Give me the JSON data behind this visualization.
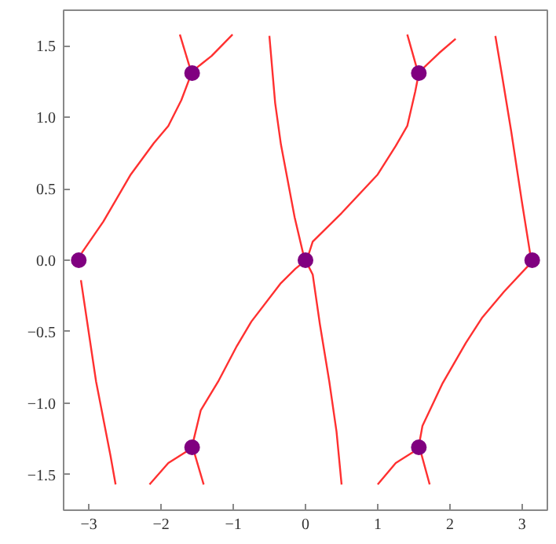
{
  "chart_data": {
    "type": "line",
    "xlim": [
      -3.35,
      3.35
    ],
    "ylim": [
      -1.75,
      1.75
    ],
    "xticks": [
      {
        "value": -3,
        "label": "−3"
      },
      {
        "value": -2,
        "label": "−2"
      },
      {
        "value": -1,
        "label": "−1"
      },
      0,
      1,
      2,
      3
    ],
    "yticks": [
      {
        "value": -1.5,
        "label": "−1.5"
      },
      {
        "value": -1,
        "label": "−1.0"
      },
      {
        "value": -0.5,
        "label": "−0.5"
      },
      {
        "value": 0,
        "label": "0.0"
      },
      {
        "value": 0.5,
        "label": "0.5"
      },
      {
        "value": 1,
        "label": "1.0"
      },
      {
        "value": 1.5,
        "label": "1.5"
      }
    ],
    "series": [
      {
        "color": "#ff3030",
        "x": [
          -3.1,
          -2.8,
          -2.42,
          -2.1,
          -1.9,
          -1.72,
          -1.6
        ],
        "values": [
          0.05,
          0.27,
          0.6,
          0.82,
          0.94,
          1.12,
          1.28
        ]
      },
      {
        "color": "#ff3030",
        "x": [
          -1.59,
          -1.74
        ],
        "values": [
          1.33,
          1.58
        ]
      },
      {
        "color": "#ff3030",
        "x": [
          -1.55,
          -1.3,
          -1.01
        ],
        "values": [
          1.33,
          1.43,
          1.58
        ]
      },
      {
        "color": "#ff3030",
        "x": [
          -0.02,
          -0.15,
          -0.34,
          -0.42,
          -0.5
        ],
        "values": [
          0.02,
          0.3,
          0.81,
          1.1,
          1.57
        ]
      },
      {
        "color": "#ff3030",
        "x": [
          0.03,
          0.1,
          0.5,
          1.0,
          1.25,
          1.41,
          1.52,
          1.57
        ],
        "values": [
          0.02,
          0.13,
          0.33,
          0.6,
          0.8,
          0.94,
          1.18,
          1.31
        ]
      },
      {
        "color": "#ff3030",
        "x": [
          1.6,
          1.85,
          2.08
        ],
        "values": [
          1.33,
          1.45,
          1.55
        ]
      },
      {
        "color": "#ff3030",
        "x": [
          1.55,
          1.41
        ],
        "values": [
          1.33,
          1.58
        ]
      },
      {
        "color": "#ff3030",
        "x": [
          3.12,
          3.0,
          2.85,
          2.72,
          2.63
        ],
        "values": [
          0.02,
          0.4,
          0.9,
          1.3,
          1.57
        ]
      },
      {
        "color": "#ff3030",
        "x": [
          -3.11,
          -2.9,
          -2.7,
          -2.63
        ],
        "values": [
          -0.14,
          -0.85,
          -1.37,
          -1.57
        ]
      },
      {
        "color": "#ff3030",
        "x": [
          -1.56,
          -1.45,
          -1.21,
          -0.95,
          -0.75,
          -0.34,
          -0.14,
          -0.02
        ],
        "values": [
          -1.28,
          -1.05,
          -0.85,
          -0.6,
          -0.43,
          -0.16,
          -0.06,
          -0.01
        ]
      },
      {
        "color": "#ff3030",
        "x": [
          -1.62,
          -1.9,
          -2.16
        ],
        "values": [
          -1.33,
          -1.42,
          -1.57
        ]
      },
      {
        "color": "#ff3030",
        "x": [
          -1.55,
          -1.41
        ],
        "values": [
          -1.33,
          -1.57
        ]
      },
      {
        "color": "#ff3030",
        "x": [
          0.02,
          0.1,
          0.2,
          0.33,
          0.43,
          0.5
        ],
        "values": [
          -0.02,
          -0.1,
          -0.45,
          -0.85,
          -1.2,
          -1.57
        ]
      },
      {
        "color": "#ff3030",
        "x": [
          3.12,
          2.75,
          2.45,
          2.22,
          1.9,
          1.62,
          1.57
        ],
        "values": [
          -0.02,
          -0.22,
          -0.4,
          -0.58,
          -0.86,
          -1.16,
          -1.3
        ]
      },
      {
        "color": "#ff3030",
        "x": [
          1.53,
          1.25,
          1.0
        ],
        "values": [
          -1.33,
          -1.42,
          -1.57
        ]
      },
      {
        "color": "#ff3030",
        "x": [
          1.59,
          1.72
        ],
        "values": [
          -1.33,
          -1.57
        ]
      },
      {
        "type": "scatter",
        "color": "#800080",
        "marker": "circle",
        "x": [
          -3.14,
          0,
          3.14,
          -1.57,
          1.57,
          -1.57,
          1.57
        ],
        "values": [
          0,
          0,
          0,
          1.31,
          1.31,
          -1.31,
          -1.31
        ]
      }
    ]
  }
}
